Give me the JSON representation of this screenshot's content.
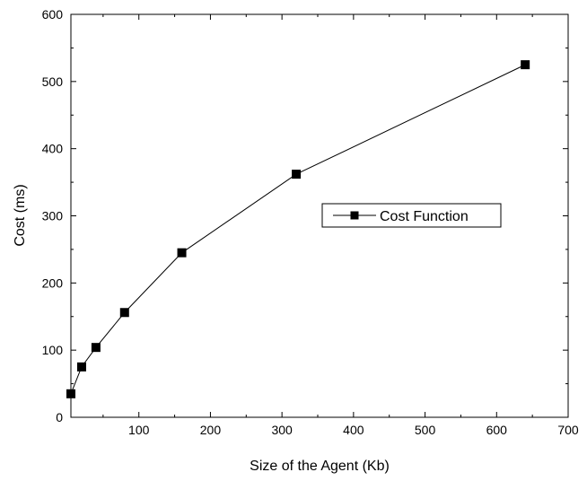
{
  "chart_data": {
    "type": "line",
    "title": "",
    "xlabel": "Size of the Agent (Kb)",
    "ylabel": "Cost (ms)",
    "xlim": [
      5,
      700
    ],
    "ylim": [
      0,
      600
    ],
    "x_ticks": [
      100,
      200,
      300,
      400,
      500,
      600,
      700
    ],
    "y_ticks": [
      0,
      100,
      200,
      300,
      400,
      500,
      600
    ],
    "grid": false,
    "legend_position": "center-right",
    "series": [
      {
        "name": "Cost Function",
        "marker": "square",
        "color": "#000000",
        "x": [
          5,
          20,
          40,
          80,
          160,
          320,
          640
        ],
        "y": [
          35,
          75,
          104,
          156,
          245,
          362,
          525
        ]
      }
    ]
  }
}
